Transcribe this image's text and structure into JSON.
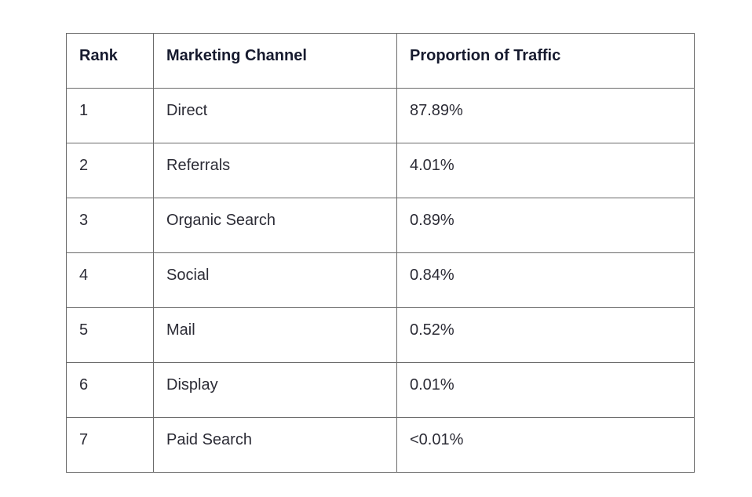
{
  "table": {
    "headers": [
      "Rank",
      "Marketing Channel",
      "Proportion of Traffic"
    ],
    "rows": [
      [
        "1",
        "Direct",
        "87.89%"
      ],
      [
        "2",
        "Referrals",
        "4.01%"
      ],
      [
        "3",
        "Organic Search",
        "0.89%"
      ],
      [
        "4",
        "Social",
        "0.84%"
      ],
      [
        "5",
        "Mail",
        "0.52%"
      ],
      [
        "6",
        "Display",
        "0.01%"
      ],
      [
        "7",
        "Paid Search",
        "<0.01%"
      ]
    ]
  }
}
